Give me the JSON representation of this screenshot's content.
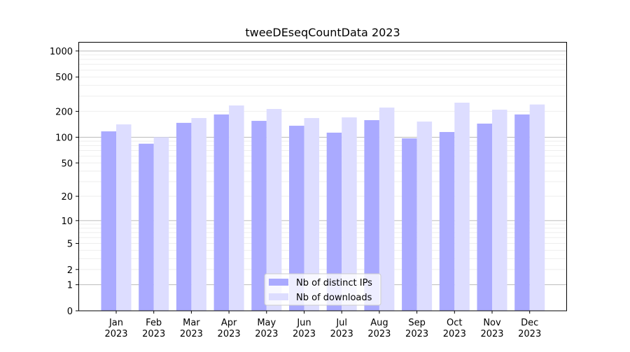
{
  "chart_data": {
    "type": "bar",
    "title": "tweeDEseqCountData 2023",
    "xlabel": "",
    "ylabel": "",
    "yscale": "log10(1+y)",
    "ylim": [
      0,
      1300
    ],
    "yticks": [
      0,
      1,
      2,
      5,
      10,
      20,
      50,
      100,
      200,
      500,
      1000
    ],
    "grid": true,
    "legend_placement": "bottom-center",
    "categories": [
      "Jan\n2023",
      "Feb\n2023",
      "Mar\n2023",
      "Apr\n2023",
      "May\n2023",
      "Jun\n2023",
      "Jul\n2023",
      "Aug\n2023",
      "Sep\n2023",
      "Oct\n2023",
      "Nov\n2023",
      "Dec\n2023"
    ],
    "series": [
      {
        "name": "Nb of distinct IPs",
        "color": "#aaaaff",
        "values": [
          117,
          84,
          147,
          184,
          155,
          136,
          113,
          158,
          97,
          115,
          144,
          184
        ]
      },
      {
        "name": "Nb of downloads",
        "color": "#ddddff",
        "values": [
          141,
          100,
          167,
          234,
          213,
          167,
          170,
          221,
          152,
          252,
          209,
          240
        ]
      }
    ]
  }
}
